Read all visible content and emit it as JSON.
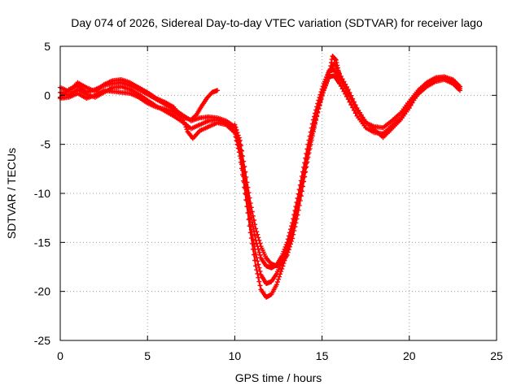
{
  "chart_data": {
    "type": "scatter",
    "title": "Day 074 of 2026, Sidereal Day-to-day VTEC variation (SDTVAR) for receiver lago",
    "xlabel": "GPS time / hours",
    "ylabel": "SDTVAR / TECUs",
    "xlim": [
      0,
      25
    ],
    "ylim": [
      -25,
      5
    ],
    "xticks": [
      0,
      5,
      10,
      15,
      20,
      25
    ],
    "yticks": [
      -25,
      -20,
      -15,
      -10,
      -5,
      0,
      5
    ],
    "grid": true,
    "marker": "plus",
    "color": "#ff0000",
    "series": [
      {
        "name": "SDTVAR trace A",
        "points": [
          [
            0,
            -0.2
          ],
          [
            0.5,
            0.6
          ],
          [
            1,
            1.0
          ],
          [
            1.5,
            0.3
          ],
          [
            2,
            0.6
          ],
          [
            2.5,
            1.0
          ],
          [
            3,
            1.2
          ],
          [
            3.5,
            1.3
          ],
          [
            4,
            1.0
          ],
          [
            4.5,
            0.6
          ],
          [
            5,
            0.1
          ],
          [
            5.5,
            -0.4
          ],
          [
            6,
            -0.9
          ],
          [
            6.5,
            -1.4
          ],
          [
            7,
            -2.0
          ],
          [
            7.5,
            -2.6
          ],
          [
            8,
            -2.3
          ],
          [
            8.5,
            -2.2
          ],
          [
            9,
            -2.3
          ],
          [
            9.5,
            -2.6
          ],
          [
            10,
            -3.2
          ],
          [
            10.3,
            -5.0
          ],
          [
            10.6,
            -8.5
          ],
          [
            10.9,
            -12.0
          ],
          [
            11.2,
            -14.8
          ],
          [
            11.5,
            -16.6
          ],
          [
            11.8,
            -17.4
          ],
          [
            12.1,
            -17.6
          ],
          [
            12.4,
            -17.3
          ],
          [
            12.7,
            -16.4
          ],
          [
            13,
            -15.0
          ],
          [
            13.3,
            -13.0
          ],
          [
            13.6,
            -10.5
          ],
          [
            13.9,
            -7.8
          ],
          [
            14.2,
            -5.0
          ],
          [
            14.5,
            -2.5
          ],
          [
            14.8,
            -0.5
          ],
          [
            15.1,
            1.2
          ],
          [
            15.4,
            2.5
          ],
          [
            15.7,
            2.6
          ],
          [
            16,
            1.8
          ],
          [
            16.5,
            0.2
          ],
          [
            17,
            -1.5
          ],
          [
            17.5,
            -2.8
          ],
          [
            18,
            -3.2
          ],
          [
            18.5,
            -3.3
          ],
          [
            19,
            -2.6
          ],
          [
            19.5,
            -1.8
          ],
          [
            20,
            -0.6
          ],
          [
            20.5,
            0.5
          ],
          [
            21,
            1.3
          ],
          [
            21.5,
            1.8
          ],
          [
            22,
            1.9
          ],
          [
            22.5,
            1.6
          ],
          [
            22.9,
            0.9
          ]
        ]
      },
      {
        "name": "SDTVAR trace B",
        "points": [
          [
            0,
            0.3
          ],
          [
            0.5,
            0.0
          ],
          [
            1,
            0.6
          ],
          [
            1.5,
            0.1
          ],
          [
            2,
            -0.2
          ],
          [
            2.5,
            0.3
          ],
          [
            3,
            0.8
          ],
          [
            3.5,
            0.9
          ],
          [
            4,
            0.6
          ],
          [
            4.5,
            0.1
          ],
          [
            5,
            -0.5
          ],
          [
            5.5,
            -1.1
          ],
          [
            6,
            -1.6
          ],
          [
            6.5,
            -2.1
          ],
          [
            7,
            -2.7
          ],
          [
            7.5,
            -3.4
          ],
          [
            8,
            -3.0
          ],
          [
            8.5,
            -2.6
          ],
          [
            9,
            -2.5
          ],
          [
            9.5,
            -2.8
          ],
          [
            10,
            -3.6
          ],
          [
            10.3,
            -5.8
          ],
          [
            10.6,
            -9.5
          ],
          [
            10.9,
            -13.2
          ],
          [
            11.2,
            -16.2
          ],
          [
            11.5,
            -18.3
          ],
          [
            11.8,
            -19.2
          ],
          [
            12.1,
            -19.0
          ],
          [
            12.4,
            -18.2
          ],
          [
            12.7,
            -17.0
          ],
          [
            13,
            -15.6
          ],
          [
            13.3,
            -13.6
          ],
          [
            13.6,
            -11.0
          ],
          [
            13.9,
            -8.4
          ],
          [
            14.2,
            -5.6
          ],
          [
            14.5,
            -3.2
          ],
          [
            14.8,
            -1.0
          ],
          [
            15.1,
            0.5
          ],
          [
            15.4,
            1.9
          ],
          [
            15.7,
            2.0
          ],
          [
            16,
            1.2
          ],
          [
            16.5,
            -0.4
          ],
          [
            17,
            -2.1
          ],
          [
            17.5,
            -3.3
          ],
          [
            18,
            -3.8
          ],
          [
            18.5,
            -3.9
          ],
          [
            19,
            -3.1
          ],
          [
            19.5,
            -2.3
          ],
          [
            20,
            -1.1
          ],
          [
            20.5,
            0.1
          ],
          [
            21,
            0.9
          ],
          [
            21.5,
            1.4
          ],
          [
            22,
            1.6
          ],
          [
            22.5,
            1.2
          ],
          [
            22.9,
            0.5
          ]
        ]
      },
      {
        "name": "SDTVAR trace C",
        "points": [
          [
            0,
            0.8
          ],
          [
            0.5,
            0.4
          ],
          [
            1,
            1.3
          ],
          [
            1.5,
            0.8
          ],
          [
            2,
            0.4
          ],
          [
            2.5,
            1.1
          ],
          [
            3,
            1.5
          ],
          [
            3.5,
            1.6
          ],
          [
            4,
            1.3
          ],
          [
            4.5,
            0.8
          ],
          [
            5,
            0.3
          ],
          [
            5.5,
            -0.3
          ],
          [
            6,
            -0.7
          ],
          [
            6.5,
            -1.2
          ],
          [
            7,
            -2.3
          ],
          [
            7.3,
            -3.7
          ],
          [
            7.6,
            -4.4
          ],
          [
            8,
            -3.6
          ],
          [
            8.5,
            -3.2
          ],
          [
            9,
            -2.8
          ],
          [
            9.5,
            -3.0
          ],
          [
            10,
            -3.8
          ],
          [
            10.3,
            -6.2
          ],
          [
            10.6,
            -10.0
          ],
          [
            10.9,
            -14.0
          ],
          [
            11.2,
            -17.4
          ],
          [
            11.5,
            -19.8
          ],
          [
            11.8,
            -20.6
          ],
          [
            12.1,
            -20.3
          ],
          [
            12.4,
            -19.3
          ],
          [
            12.7,
            -17.7
          ],
          [
            13,
            -16.0
          ],
          [
            13.3,
            -14.0
          ],
          [
            13.6,
            -11.5
          ],
          [
            13.9,
            -8.8
          ],
          [
            14.2,
            -6.0
          ],
          [
            14.5,
            -3.5
          ],
          [
            14.8,
            -1.3
          ],
          [
            15.1,
            0.8
          ],
          [
            15.4,
            2.4
          ],
          [
            15.7,
            3.3
          ],
          [
            16,
            2.2
          ],
          [
            16.5,
            0.6
          ],
          [
            17,
            -1.3
          ],
          [
            17.5,
            -2.7
          ],
          [
            18,
            -3.5
          ],
          [
            18.5,
            -4.3
          ],
          [
            19,
            -3.4
          ],
          [
            19.5,
            -2.5
          ],
          [
            20,
            -1.3
          ],
          [
            20.5,
            0.3
          ],
          [
            21,
            1.2
          ],
          [
            21.5,
            1.7
          ],
          [
            22,
            1.8
          ],
          [
            22.5,
            1.4
          ],
          [
            22.9,
            0.7
          ]
        ]
      },
      {
        "name": "SDTVAR trace D",
        "points": [
          [
            0,
            -0.3
          ],
          [
            0.5,
            -0.2
          ],
          [
            1,
            0.2
          ],
          [
            1.5,
            -0.3
          ],
          [
            2,
            0.0
          ],
          [
            2.5,
            0.5
          ],
          [
            3,
            0.4
          ],
          [
            3.5,
            0.3
          ],
          [
            4,
            0.2
          ],
          [
            4.5,
            -0.2
          ],
          [
            5,
            -0.8
          ],
          [
            5.5,
            -1.2
          ],
          [
            6,
            -1.4
          ],
          [
            6.5,
            -1.7
          ],
          [
            7,
            -2.2
          ],
          [
            7.5,
            -2.5
          ],
          [
            7.8,
            -2.0
          ],
          [
            8.1,
            -1.1
          ],
          [
            8.4,
            -0.3
          ],
          [
            8.7,
            0.3
          ],
          [
            9.0,
            0.5
          ]
        ]
      },
      {
        "name": "SDTVAR trace E",
        "points": [
          [
            10,
            -3.0
          ],
          [
            10.3,
            -4.6
          ],
          [
            10.6,
            -7.8
          ],
          [
            10.9,
            -11.0
          ],
          [
            11.2,
            -13.6
          ],
          [
            11.5,
            -15.4
          ],
          [
            11.8,
            -16.6
          ],
          [
            12.1,
            -17.2
          ],
          [
            12.4,
            -17.4
          ],
          [
            12.7,
            -17.1
          ],
          [
            13,
            -16.3
          ],
          [
            13.3,
            -14.6
          ],
          [
            13.6,
            -12.2
          ],
          [
            13.9,
            -9.3
          ],
          [
            14.2,
            -6.3
          ],
          [
            14.5,
            -3.7
          ],
          [
            14.8,
            -1.4
          ],
          [
            15.1,
            0.6
          ],
          [
            15.4,
            2.0
          ],
          [
            15.6,
            4.0
          ],
          [
            15.8,
            3.6
          ],
          [
            16,
            2.0
          ],
          [
            16.5,
            0.0
          ]
        ]
      }
    ]
  }
}
